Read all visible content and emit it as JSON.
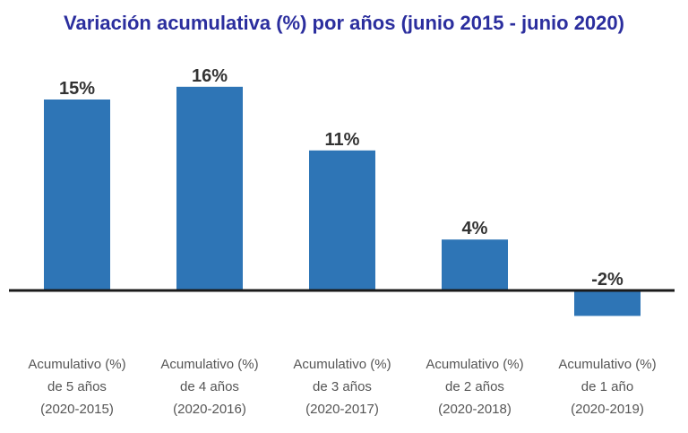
{
  "chart_data": {
    "type": "bar",
    "title": "Variación acumulativa (%) por años (junio 2015 - junio 2020)",
    "categories": [
      [
        "Acumulativo (%)",
        "de 5 años",
        "(2020-2015)"
      ],
      [
        "Acumulativo (%)",
        "de  4 años",
        "(2020-2016)"
      ],
      [
        "Acumulativo (%)",
        "de 3 años",
        "(2020-2017)"
      ],
      [
        "Acumulativo (%)",
        "de 2 años",
        "(2020-2018)"
      ],
      [
        "Acumulativo (%)",
        "de 1 año",
        "(2020-2019)"
      ]
    ],
    "values": [
      15,
      16,
      11,
      4,
      -2
    ],
    "value_labels": [
      "15%",
      "16%",
      "11%",
      "4%",
      "-2%"
    ],
    "unit": "%",
    "xlabel": "",
    "ylabel": "",
    "grid": false,
    "legend": "none",
    "bar_color": "#2e75b6",
    "title_color": "#2b2e9e",
    "axis_color": "#1a1a1a"
  }
}
